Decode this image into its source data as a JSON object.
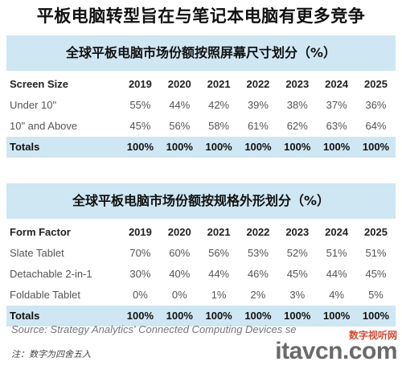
{
  "headline": "平板电脑转型旨在与笔记本电脑有更多竞争",
  "table1": {
    "title": "全球平板电脑市场份额按照屏幕尺寸划分（%）",
    "label_header": "Screen Size",
    "years": [
      "2019",
      "2020",
      "2021",
      "2022",
      "2023",
      "2024",
      "2025"
    ],
    "rows": [
      {
        "label": "Under 10\"",
        "values": [
          "55%",
          "44%",
          "42%",
          "39%",
          "38%",
          "37%",
          "36%"
        ]
      },
      {
        "label": "10\" and Above",
        "values": [
          "45%",
          "56%",
          "58%",
          "61%",
          "62%",
          "63%",
          "64%"
        ]
      }
    ],
    "totals": {
      "label": "Totals",
      "values": [
        "100%",
        "100%",
        "100%",
        "100%",
        "100%",
        "100%",
        "100%"
      ]
    }
  },
  "table2": {
    "title": "全球平板电脑市场份额按规格外形划分（%）",
    "label_header": "Form Factor",
    "years": [
      "2019",
      "2020",
      "2021",
      "2022",
      "2023",
      "2024",
      "2025"
    ],
    "rows": [
      {
        "label": "Slate Tablet",
        "values": [
          "70%",
          "60%",
          "56%",
          "53%",
          "52%",
          "51%",
          "51%"
        ]
      },
      {
        "label": "Detachable 2-in-1",
        "values": [
          "30%",
          "40%",
          "44%",
          "46%",
          "45%",
          "44%",
          "45%"
        ]
      },
      {
        "label": "Foldable Tablet",
        "values": [
          "0%",
          "0%",
          "1%",
          "2%",
          "3%",
          "4%",
          "5%"
        ]
      }
    ],
    "totals": {
      "label": "Totals",
      "values": [
        "100%",
        "100%",
        "100%",
        "100%",
        "100%",
        "100%",
        "100%"
      ]
    }
  },
  "source": "Source: Strategy Analytics' Connected Computing Devices se",
  "note": "注：数字为四舍五入",
  "watermark": {
    "cn": "数字视听网",
    "en": "itavcn.com"
  }
}
